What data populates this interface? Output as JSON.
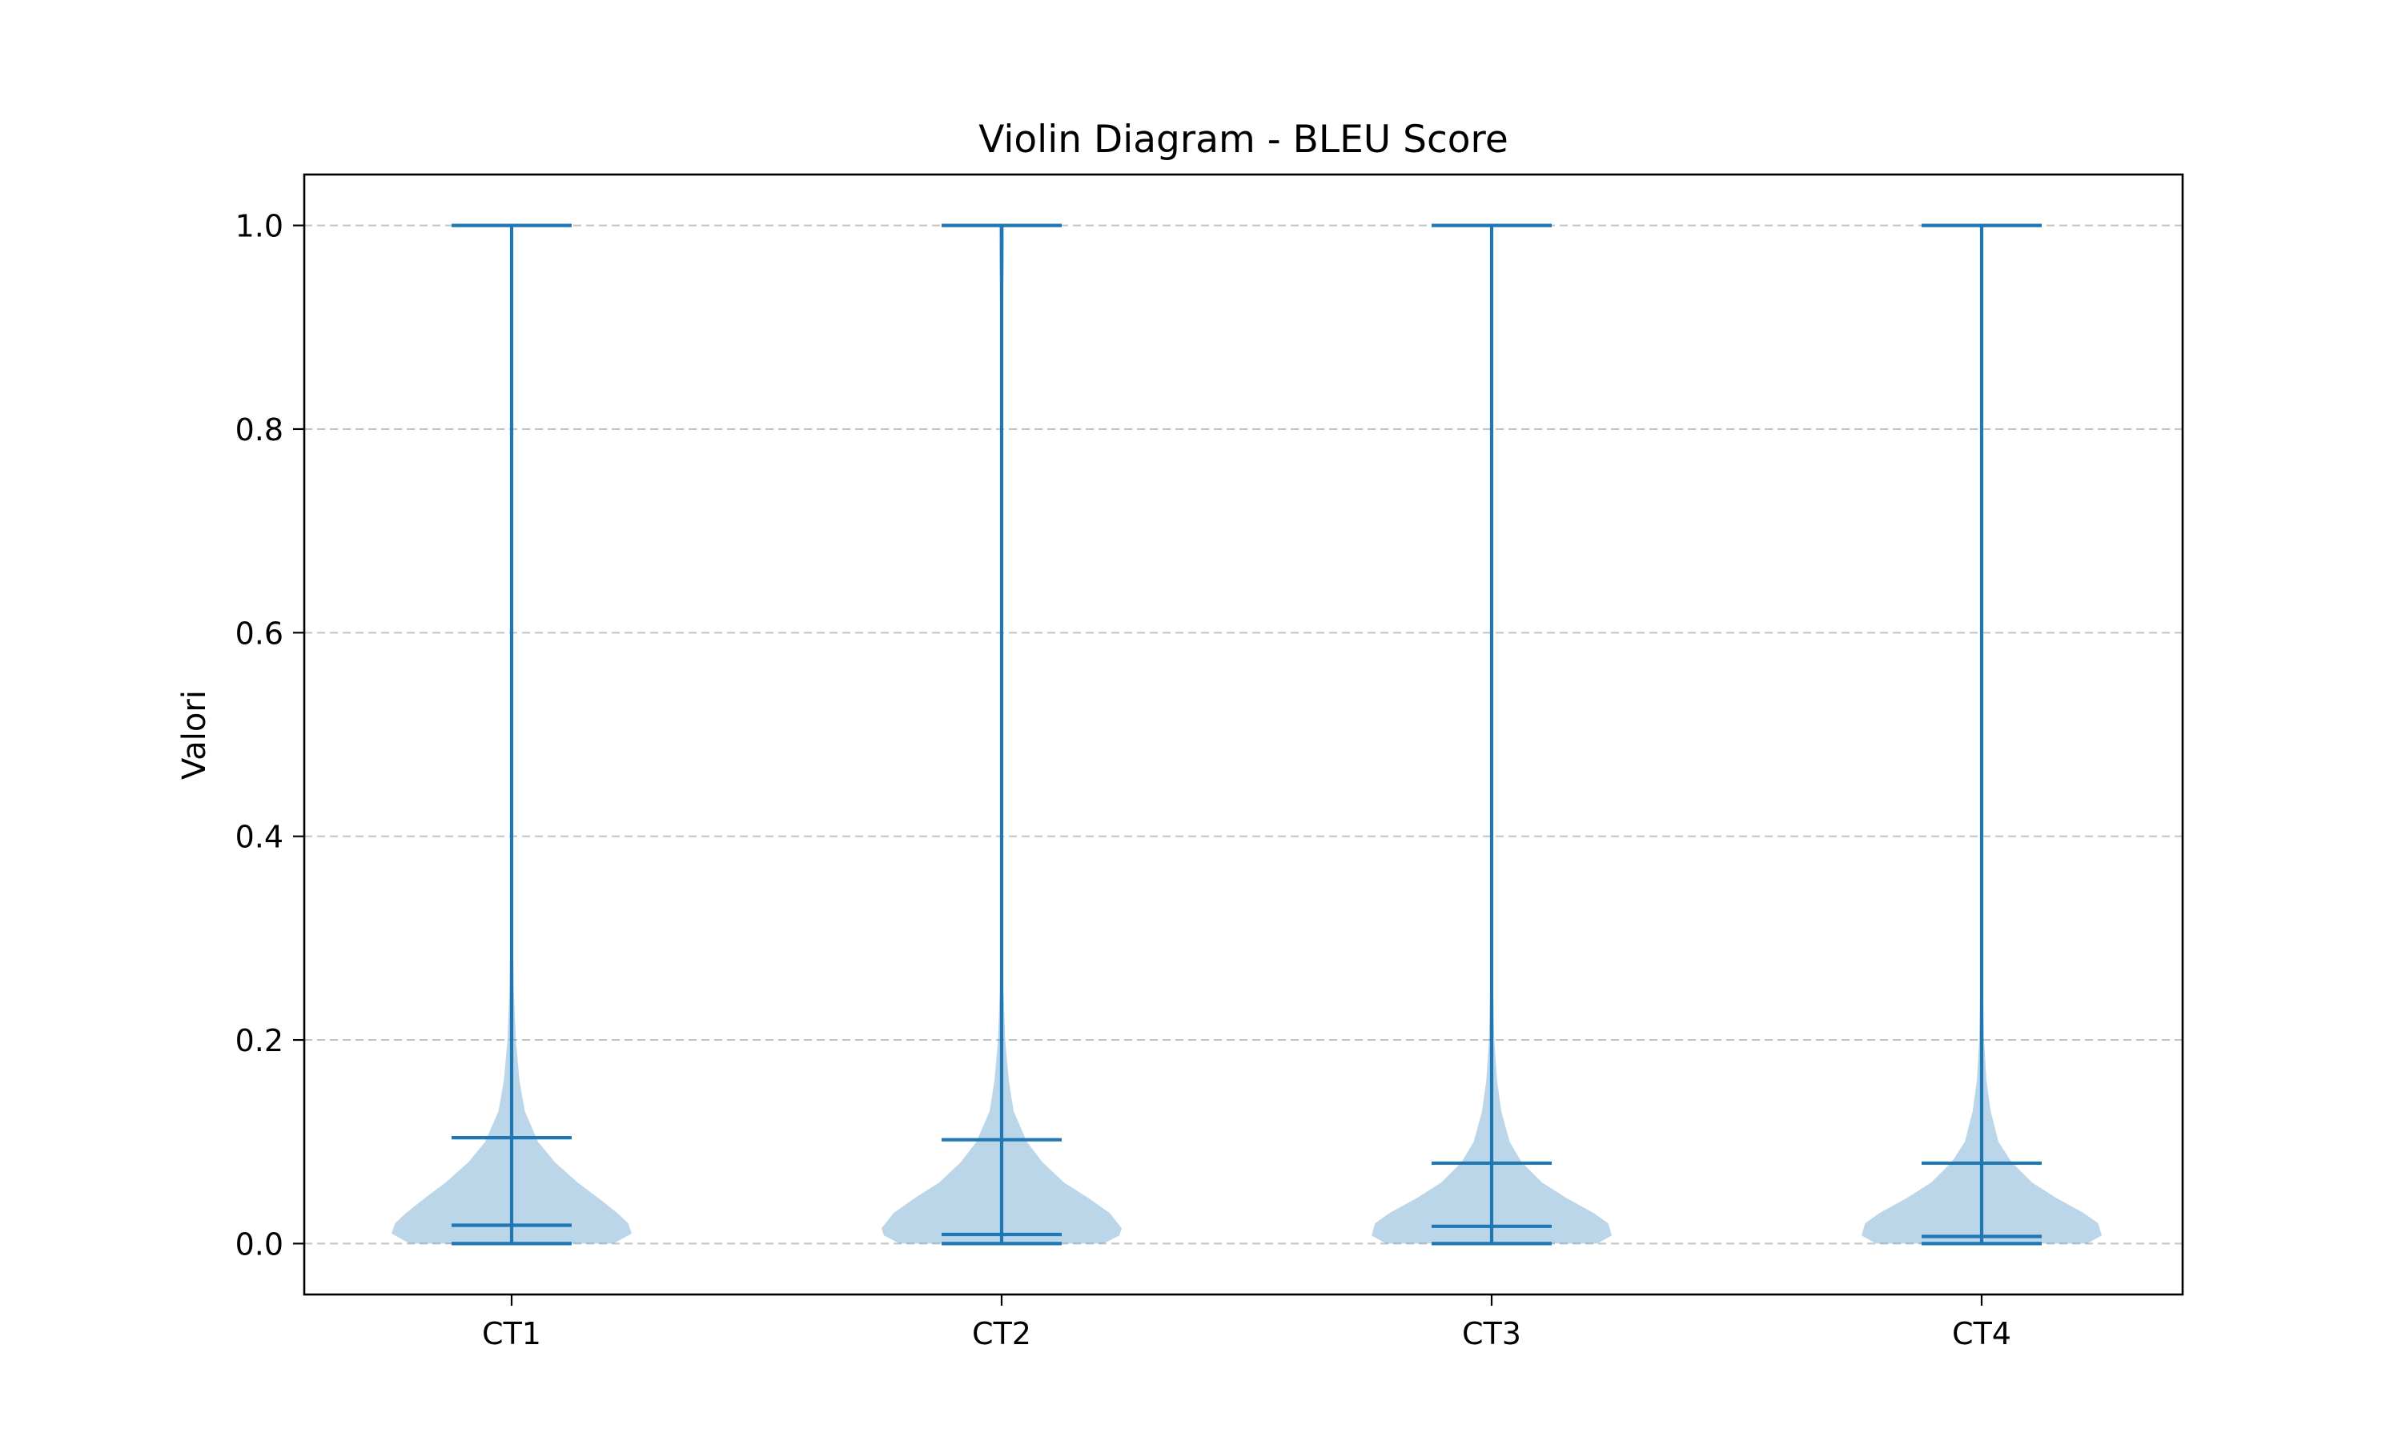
{
  "chart_data": {
    "type": "violin",
    "title": "Violin Diagram - BLEU Score",
    "xlabel": "",
    "ylabel": "Valori",
    "ylim": [
      -0.05,
      1.05
    ],
    "yticks": [
      0.0,
      0.2,
      0.4,
      0.6,
      0.8,
      1.0
    ],
    "ytick_labels": [
      "0.0",
      "0.2",
      "0.4",
      "0.6",
      "0.8",
      "1.0"
    ],
    "grid": {
      "y": true,
      "x": false,
      "style": "dashed"
    },
    "categories": [
      "CT1",
      "CT2",
      "CT3",
      "CT4"
    ],
    "colors": {
      "line": "#1f77b4",
      "fill": "#1f77b4",
      "grid": "#b0b0b0"
    },
    "series": [
      {
        "min": 0.0,
        "max": 1.0,
        "mean": 0.104,
        "median": 0.018,
        "density": [
          [
            0.0,
            0.85
          ],
          [
            0.01,
            1.0
          ],
          [
            0.02,
            0.97
          ],
          [
            0.03,
            0.88
          ],
          [
            0.045,
            0.72
          ],
          [
            0.06,
            0.55
          ],
          [
            0.08,
            0.36
          ],
          [
            0.1,
            0.22
          ],
          [
            0.13,
            0.11
          ],
          [
            0.16,
            0.065
          ],
          [
            0.2,
            0.035
          ],
          [
            0.25,
            0.018
          ],
          [
            0.3,
            0.01
          ],
          [
            0.4,
            0.006
          ],
          [
            0.6,
            0.004
          ],
          [
            0.9,
            0.004
          ],
          [
            0.98,
            0.01
          ],
          [
            1.0,
            0.014
          ]
        ]
      },
      {
        "min": 0.0,
        "max": 1.0,
        "mean": 0.102,
        "median": 0.009,
        "density": [
          [
            0.0,
            0.85
          ],
          [
            0.008,
            0.98
          ],
          [
            0.015,
            1.0
          ],
          [
            0.03,
            0.9
          ],
          [
            0.045,
            0.72
          ],
          [
            0.06,
            0.52
          ],
          [
            0.08,
            0.34
          ],
          [
            0.1,
            0.21
          ],
          [
            0.13,
            0.1
          ],
          [
            0.16,
            0.06
          ],
          [
            0.2,
            0.03
          ],
          [
            0.25,
            0.015
          ],
          [
            0.3,
            0.009
          ],
          [
            0.4,
            0.006
          ],
          [
            0.6,
            0.004
          ],
          [
            0.88,
            0.006
          ],
          [
            0.96,
            0.018
          ],
          [
            1.0,
            0.022
          ]
        ]
      },
      {
        "min": 0.0,
        "max": 1.0,
        "mean": 0.079,
        "median": 0.017,
        "density": [
          [
            0.0,
            0.88
          ],
          [
            0.008,
            1.0
          ],
          [
            0.02,
            0.97
          ],
          [
            0.03,
            0.85
          ],
          [
            0.045,
            0.62
          ],
          [
            0.06,
            0.42
          ],
          [
            0.08,
            0.25
          ],
          [
            0.1,
            0.15
          ],
          [
            0.13,
            0.08
          ],
          [
            0.16,
            0.045
          ],
          [
            0.2,
            0.022
          ],
          [
            0.25,
            0.012
          ],
          [
            0.3,
            0.008
          ],
          [
            0.4,
            0.005
          ],
          [
            0.6,
            0.004
          ],
          [
            0.9,
            0.004
          ],
          [
            1.0,
            0.006
          ]
        ]
      },
      {
        "min": 0.0,
        "max": 1.0,
        "mean": 0.079,
        "median": 0.007,
        "density": [
          [
            0.0,
            0.88
          ],
          [
            0.008,
            1.0
          ],
          [
            0.02,
            0.97
          ],
          [
            0.03,
            0.85
          ],
          [
            0.045,
            0.62
          ],
          [
            0.06,
            0.42
          ],
          [
            0.08,
            0.25
          ],
          [
            0.1,
            0.14
          ],
          [
            0.13,
            0.075
          ],
          [
            0.16,
            0.04
          ],
          [
            0.2,
            0.02
          ],
          [
            0.25,
            0.011
          ],
          [
            0.3,
            0.007
          ],
          [
            0.4,
            0.005
          ],
          [
            0.6,
            0.004
          ],
          [
            0.9,
            0.004
          ],
          [
            1.0,
            0.007
          ]
        ]
      }
    ]
  }
}
